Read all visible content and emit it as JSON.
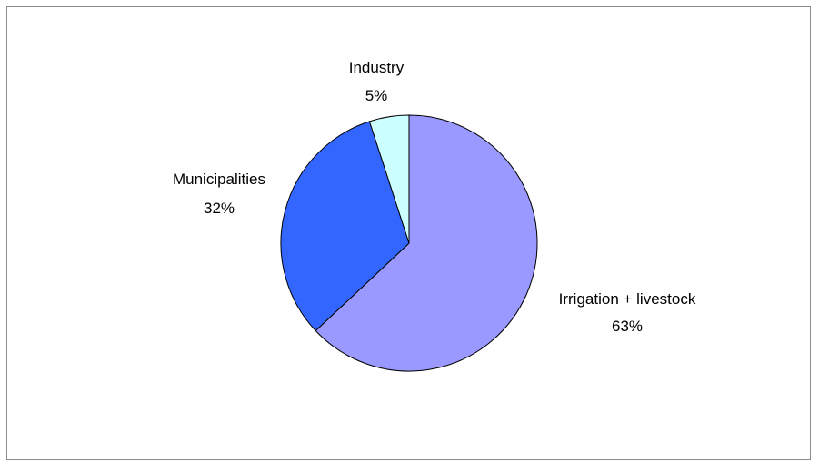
{
  "chart_data": {
    "type": "pie",
    "title": "",
    "start_angle": "12 o'clock",
    "direction": "clockwise",
    "slices": [
      {
        "label": "Irrigation + livestock",
        "value": 63,
        "pct_label": "63%",
        "color": "#9999ff"
      },
      {
        "label": "Municipalities",
        "value": 32,
        "pct_label": "32%",
        "color": "#3366ff"
      },
      {
        "label": "Industry",
        "value": 5,
        "pct_label": "5%",
        "color": "#ccffff"
      }
    ],
    "legend": "none",
    "data_labels": "outside"
  }
}
